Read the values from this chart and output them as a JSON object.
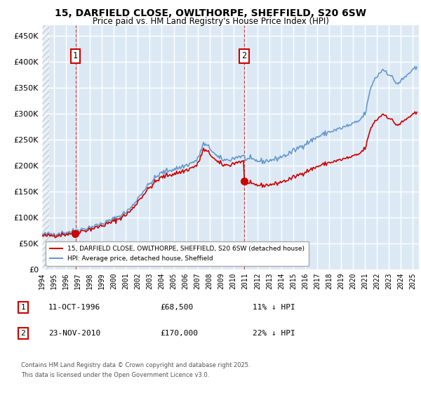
{
  "title_line1": "15, DARFIELD CLOSE, OWLTHORPE, SHEFFIELD, S20 6SW",
  "title_line2": "Price paid vs. HM Land Registry's House Price Index (HPI)",
  "plot_bg_color": "#dce9f5",
  "red_line_color": "#cc0000",
  "blue_line_color": "#6699cc",
  "dashed_line_color": "#cc3333",
  "grid_color": "#ffffff",
  "annotation1": {
    "label": "1",
    "date_x": 1996.79,
    "price": 68500,
    "text_date": "11-OCT-1996",
    "text_price": "£68,500",
    "text_hpi": "11% ↓ HPI"
  },
  "annotation2": {
    "label": "2",
    "date_x": 2010.9,
    "price": 170000,
    "text_date": "23-NOV-2010",
    "text_price": "£170,000",
    "text_hpi": "22% ↓ HPI"
  },
  "legend_label1": "15, DARFIELD CLOSE, OWLTHORPE, SHEFFIELD, S20 6SW (detached house)",
  "legend_label2": "HPI: Average price, detached house, Sheffield",
  "footer_line1": "Contains HM Land Registry data © Crown copyright and database right 2025.",
  "footer_line2": "This data is licensed under the Open Government Licence v3.0.",
  "ylim": [
    0,
    470000
  ],
  "yticks": [
    0,
    50000,
    100000,
    150000,
    200000,
    250000,
    300000,
    350000,
    400000,
    450000
  ],
  "xlim_start": 1994.0,
  "xlim_end": 2025.5,
  "hatch_end": 1994.58,
  "anchors_x": [
    1994.0,
    1994.5,
    1995.0,
    1995.5,
    1996.0,
    1996.5,
    1997.0,
    1997.5,
    1998.0,
    1998.5,
    1999.0,
    1999.5,
    2000.0,
    2000.5,
    2001.0,
    2001.5,
    2002.0,
    2002.5,
    2003.0,
    2003.5,
    2004.0,
    2004.5,
    2005.0,
    2005.5,
    2006.0,
    2006.5,
    2007.0,
    2007.25,
    2007.5,
    2007.75,
    2008.0,
    2008.25,
    2008.5,
    2008.75,
    2009.0,
    2009.5,
    2010.0,
    2010.5,
    2010.9,
    2011.0,
    2011.5,
    2012.0,
    2012.5,
    2013.0,
    2013.5,
    2014.0,
    2014.5,
    2015.0,
    2015.5,
    2016.0,
    2016.5,
    2017.0,
    2017.5,
    2018.0,
    2018.5,
    2019.0,
    2019.5,
    2020.0,
    2020.5,
    2021.0,
    2021.25,
    2021.5,
    2021.75,
    2022.0,
    2022.25,
    2022.5,
    2022.75,
    2023.0,
    2023.25,
    2023.5,
    2023.75,
    2024.0,
    2024.25,
    2024.5,
    2024.75,
    2025.0,
    2025.3
  ],
  "anchors_y": [
    67000,
    67500,
    68500,
    69500,
    71000,
    73000,
    76000,
    78000,
    81000,
    84000,
    88000,
    92000,
    97000,
    103000,
    110000,
    120000,
    137000,
    152000,
    165000,
    177000,
    186000,
    190000,
    193000,
    196000,
    200000,
    205000,
    211000,
    228000,
    242000,
    238000,
    234000,
    228000,
    220000,
    215000,
    212000,
    210000,
    214000,
    218000,
    217000,
    213000,
    211000,
    209000,
    208000,
    210000,
    212000,
    217000,
    221000,
    228000,
    235000,
    242000,
    248000,
    255000,
    260000,
    265000,
    268000,
    272000,
    276000,
    280000,
    286000,
    300000,
    325000,
    352000,
    365000,
    372000,
    380000,
    385000,
    382000,
    376000,
    370000,
    362000,
    358000,
    363000,
    368000,
    374000,
    380000,
    383000,
    388000
  ],
  "sale1_price": 68500,
  "sale2_price": 170000,
  "sale1_x": 1996.79,
  "sale2_x": 2010.9,
  "noise_seed": 42,
  "noise_std": 2500
}
